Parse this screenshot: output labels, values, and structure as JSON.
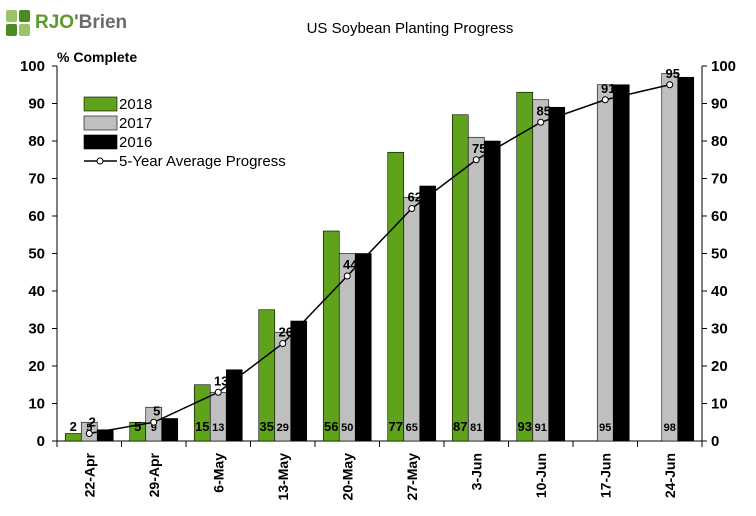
{
  "brand": {
    "name_part1": "RJO",
    "name_part2": "'Brien"
  },
  "colors": {
    "s2018": "#5ea31b",
    "s2017": "#bfbfbf",
    "s2016": "#000000",
    "avg": "#000000"
  },
  "chart_data": {
    "type": "bar",
    "title": "US Soybean Planting Progress",
    "ylabel": "% Complete",
    "ylim": [
      0,
      100
    ],
    "yticks": [
      0,
      10,
      20,
      30,
      40,
      50,
      60,
      70,
      80,
      90,
      100
    ],
    "categories": [
      "22-Apr",
      "29-Apr",
      "6-May",
      "13-May",
      "20-May",
      "27-May",
      "3-Jun",
      "10-Jun",
      "17-Jun",
      "24-Jun"
    ],
    "series": [
      {
        "name": "2018",
        "values": [
          2,
          5,
          15,
          35,
          56,
          77,
          87,
          93,
          null,
          null
        ],
        "value_labels": [
          "2",
          "5",
          "15",
          "35",
          "56",
          "77",
          "87",
          "93",
          "",
          ""
        ]
      },
      {
        "name": "2017",
        "values": [
          5,
          9,
          13,
          29,
          50,
          65,
          81,
          91,
          95,
          98
        ],
        "value_labels": [
          "5",
          "9",
          "13",
          "29",
          "50",
          "65",
          "81",
          "91",
          "95",
          "98"
        ]
      },
      {
        "name": "2016",
        "values": [
          3,
          6,
          19,
          32,
          50,
          68,
          80,
          89,
          95,
          97
        ]
      }
    ],
    "average": {
      "name": "5-Year Average Progress",
      "values": [
        2,
        5,
        13,
        26,
        44,
        62,
        75,
        85,
        91,
        95
      ],
      "value_labels": [
        "2",
        "5",
        "13",
        "26",
        "44",
        "62",
        "75",
        "85",
        "91",
        "95"
      ]
    },
    "legend_position": "top-left",
    "grid": false
  }
}
